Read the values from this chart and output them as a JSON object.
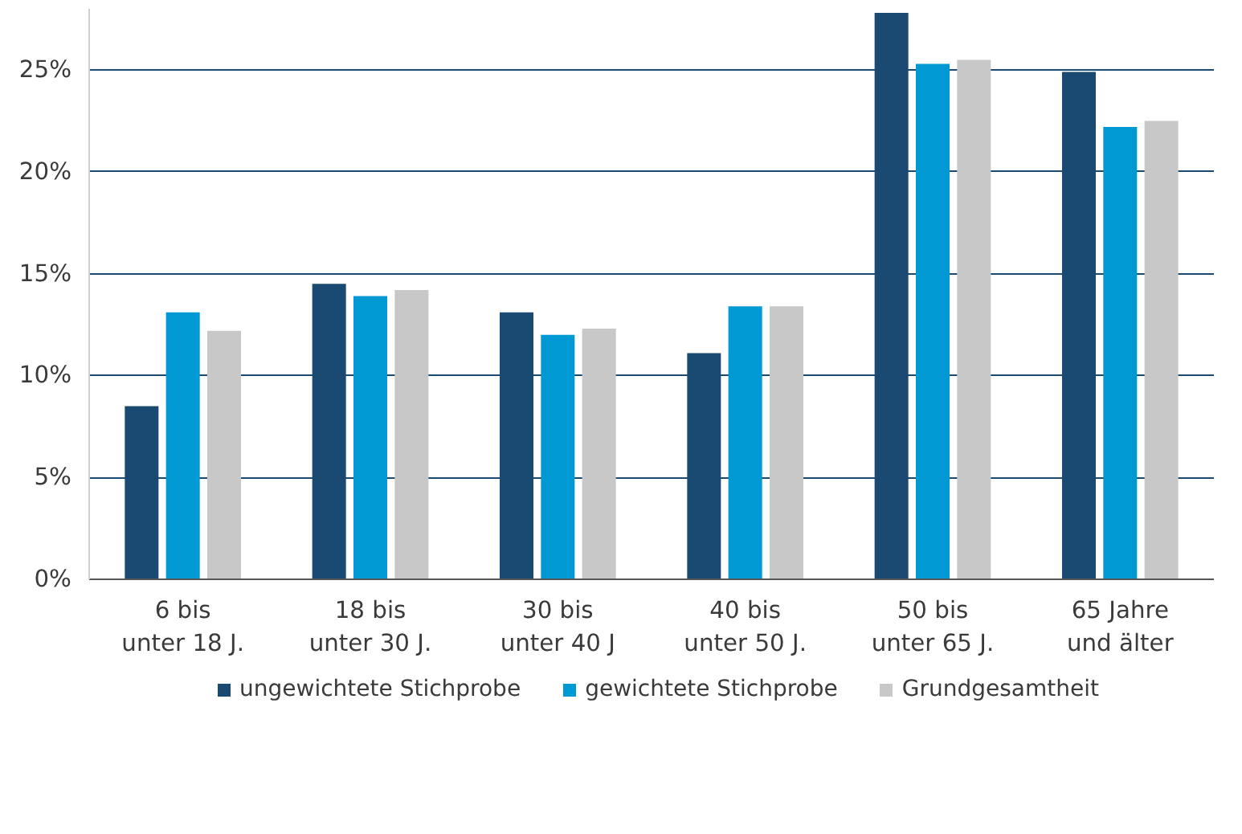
{
  "chart_data": {
    "type": "bar",
    "categories": [
      "6 bis\nunter 18 J.",
      "18 bis\nunter 30 J.",
      "30 bis\nunter 40 J",
      "40 bis\nunter 50 J.",
      "50 bis\nunter 65 J.",
      "65 Jahre\nund älter"
    ],
    "series": [
      {
        "name": "ungewichtete Stichprobe",
        "color": "#1a4a72",
        "values": [
          8.5,
          14.5,
          13.1,
          11.1,
          27.8,
          24.9
        ]
      },
      {
        "name": "gewichtete Stichprobe",
        "color": "#0099d4",
        "values": [
          13.1,
          13.9,
          12.0,
          13.4,
          25.3,
          22.2
        ]
      },
      {
        "name": "Grundgesamtheit",
        "color": "#c8c8c8",
        "values": [
          12.2,
          14.2,
          12.3,
          13.4,
          25.5,
          22.5
        ]
      }
    ],
    "yticks": [
      {
        "value": 0,
        "label": "0%"
      },
      {
        "value": 5,
        "label": "5%"
      },
      {
        "value": 10,
        "label": "10%"
      },
      {
        "value": 15,
        "label": "15%"
      },
      {
        "value": 20,
        "label": "20%"
      },
      {
        "value": 25,
        "label": "25%"
      }
    ],
    "ylim": [
      0,
      28
    ],
    "grid": "y",
    "legend": "bottom"
  }
}
